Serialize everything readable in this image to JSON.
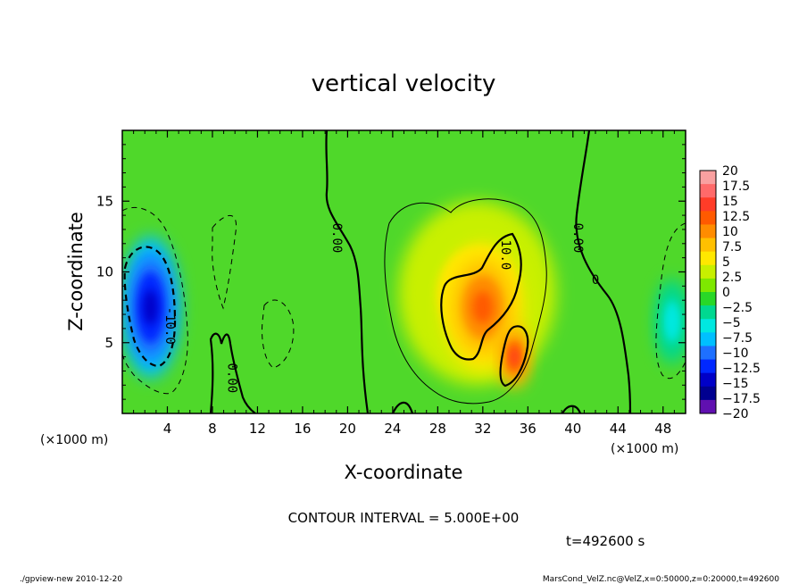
{
  "chart_data": {
    "type": "heatmap",
    "title": "vertical velocity",
    "xlabel": "X-coordinate",
    "ylabel": "Z-coordinate",
    "x_unit": "(×1000 m)",
    "y_unit": "(×1000 m)",
    "xlim": [
      0,
      50
    ],
    "ylim": [
      0,
      20
    ],
    "x_ticks": [
      "4",
      "8",
      "12",
      "16",
      "20",
      "24",
      "28",
      "32",
      "36",
      "40",
      "44",
      "48"
    ],
    "y_ticks": [
      "5",
      "10",
      "15"
    ],
    "colorbar": {
      "labels": [
        "20",
        "17.5",
        "15",
        "12.5",
        "10",
        "7.5",
        "5",
        "2.5",
        "0",
        "−2.5",
        "−5",
        "−7.5",
        "−10",
        "−12.5",
        "−15",
        "−17.5",
        "−20"
      ],
      "colors": [
        "#f9a0a0",
        "#ff6a6a",
        "#ff3c28",
        "#ff5a00",
        "#ff8c00",
        "#ffc000",
        "#ffe800",
        "#c8f000",
        "#7ee800",
        "#28d828",
        "#00d890",
        "#00e8e0",
        "#00c0ff",
        "#1e70ff",
        "#0028ff",
        "#0000c8",
        "#000090",
        "#6010b0"
      ]
    },
    "contour_labels": [
      {
        "text": "0.00",
        "x": 19.0,
        "z": 12.4,
        "angle": 90
      },
      {
        "text": "0.00",
        "x": 40.4,
        "z": 12.4,
        "angle": 90
      },
      {
        "text": "10.0",
        "x": 34.0,
        "z": 11.2,
        "angle": 90
      },
      {
        "text": "-10.0",
        "x": 4.2,
        "z": 6.2,
        "angle": 90
      },
      {
        "text": "0.00",
        "x": 9.7,
        "z": 2.5,
        "angle": 90
      },
      {
        "text": "0",
        "x": 42.0,
        "z": 9.4,
        "angle": 0
      }
    ],
    "blobs": [
      {
        "name": "downdraft-left",
        "x": 2.5,
        "z": 7.5,
        "rx": 2.6,
        "rz": 5.0,
        "value": -14
      },
      {
        "name": "downdraft-right",
        "x": 48.8,
        "z": 6.5,
        "rx": 1.4,
        "rz": 3.0,
        "value": -6
      },
      {
        "name": "updraft-halo",
        "x": 31.5,
        "z": 8.5,
        "rx": 7.0,
        "rz": 6.5,
        "value": 6
      },
      {
        "name": "updraft-core",
        "x": 32.0,
        "z": 7.5,
        "rx": 3.6,
        "rz": 4.5,
        "value": 12
      },
      {
        "name": "updraft-lower",
        "x": 34.8,
        "z": 4.0,
        "rx": 1.3,
        "rz": 2.2,
        "value": 14
      }
    ],
    "contour_interval": "CONTOUR INTERVAL = 5.000E+00",
    "time": "t=492600 s"
  },
  "footer": {
    "left": "./gpview-new  2010-12-20",
    "right": "MarsCond_VelZ.nc@VelZ,x=0:50000,z=0:20000,t=492600"
  }
}
